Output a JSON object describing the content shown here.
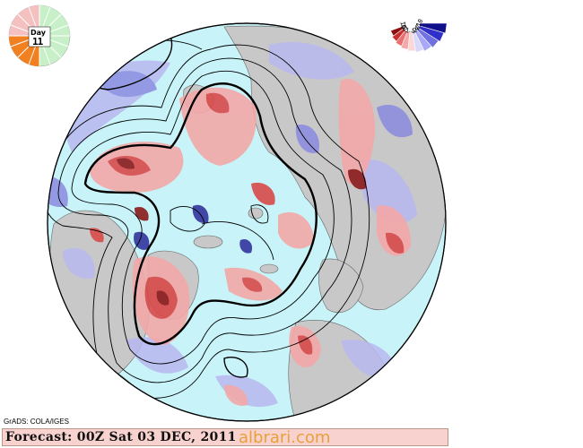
{
  "map": {
    "projection": "north-polar-stereographic",
    "colors": {
      "ocean": "#c8f3f8",
      "land": "#c8c8c8",
      "warm_dark": "#8b1a1a",
      "warm_mid": "#d84a4a",
      "warm_light": "#f3a8a8",
      "cold_light": "#b8b8f0",
      "cold_mid": "#8a8ae0",
      "cold_dark": "#2a2a9a",
      "contour": "#000000"
    }
  },
  "day_dial": {
    "label": "Day",
    "number": "11",
    "colors": {
      "orange": "#f08020",
      "light_red": "#f4c0c0",
      "light_green": "#c8f0c8"
    }
  },
  "scale": {
    "labels": [
      "10",
      "7",
      "4",
      "2",
      "1",
      "-1",
      "-2",
      "-4",
      "-7",
      "-10"
    ],
    "colors": [
      "#8b1010",
      "#c83030",
      "#e87070",
      "#f4a8a8",
      "#fbd8d8",
      "#d8d8fb",
      "#a8a8f4",
      "#7070e0",
      "#3030c8",
      "#10108b"
    ]
  },
  "credit": "GrADS: COLA/IGES",
  "forecast": "Forecast: 00Z Sat 03 DEC, 2011",
  "watermark": "albrari.com"
}
